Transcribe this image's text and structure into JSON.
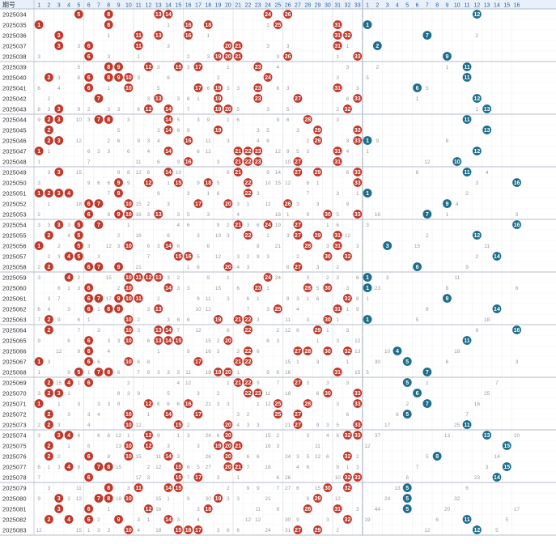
{
  "chart_data": {
    "type": "table",
    "header": {
      "period_label": "期号",
      "red_columns": [
        1,
        2,
        3,
        4,
        5,
        6,
        7,
        8,
        9,
        10,
        11,
        12,
        13,
        14,
        15,
        16,
        17,
        18,
        19,
        20,
        21,
        22,
        23,
        24,
        25,
        26,
        27,
        28,
        29,
        30,
        31,
        32,
        33
      ],
      "blue_columns": [
        1,
        2,
        3,
        4,
        5,
        6,
        7,
        8,
        9,
        10,
        11,
        12,
        13,
        14,
        15,
        16
      ]
    },
    "colors": {
      "red": "#c0392b",
      "blue": "#1f6e8c",
      "header_bg": "#e8f1fb",
      "header_text": "#2a5d96",
      "miss_text": "#999999"
    },
    "draws": [
      {
        "period": "2025034",
        "red": [
          5,
          8,
          13,
          14,
          24,
          26
        ],
        "blue": 12
      },
      {
        "period": "2025035",
        "red": [
          1,
          8,
          16,
          18,
          25,
          31
        ],
        "blue": 1
      },
      {
        "period": "2025036",
        "red": [
          3,
          11,
          13,
          16,
          31,
          32
        ],
        "blue": 7
      },
      {
        "period": "2025037",
        "red": [
          3,
          6,
          11,
          20,
          21,
          31
        ],
        "blue": 2
      },
      {
        "period": "2025038",
        "red": [
          6,
          19,
          20,
          21,
          26,
          33
        ],
        "blue": 9
      },
      {
        "period": "2025039",
        "red": [
          8,
          9,
          12,
          15,
          17,
          23
        ],
        "blue": 11
      },
      {
        "period": "2025040",
        "red": [
          2,
          6,
          8,
          9,
          10,
          24
        ],
        "blue": 11
      },
      {
        "period": "2025041",
        "red": [
          6,
          10,
          17,
          19,
          23,
          31
        ],
        "blue": 6
      },
      {
        "period": "2025042",
        "red": [
          7,
          13,
          19,
          23,
          27,
          33
        ],
        "blue": 12
      },
      {
        "period": "2025043",
        "red": [
          3,
          12,
          14,
          19,
          20,
          32
        ],
        "blue": 13
      },
      {
        "period": "2025044",
        "red": [
          2,
          3,
          7,
          8,
          14,
          28
        ],
        "blue": 11
      },
      {
        "period": "2025045",
        "red": [
          2,
          14,
          19,
          29,
          33
        ],
        "blue": 13
      },
      {
        "period": "2025046",
        "red": [
          2,
          3,
          16,
          29,
          33
        ],
        "blue": 1
      },
      {
        "period": "2025047",
        "red": [
          1,
          14,
          21,
          22,
          23,
          31
        ],
        "blue": 12
      },
      {
        "period": "2025048",
        "red": [
          16,
          21,
          22,
          23,
          27,
          31
        ],
        "blue": 10
      },
      {
        "period": "2025049",
        "red": [
          3,
          14,
          21,
          27,
          29,
          33
        ],
        "blue": 11
      },
      {
        "period": "2025050",
        "red": [
          9,
          12,
          15,
          18,
          22,
          33
        ],
        "blue": 16
      },
      {
        "period": "2025051",
        "red": [
          1,
          2,
          3,
          4,
          9,
          22
        ],
        "blue": 1
      },
      {
        "period": "2025052",
        "red": [
          6,
          7,
          10,
          17,
          20,
          26
        ],
        "blue": 9
      },
      {
        "period": "2025053",
        "red": [
          6,
          9,
          10,
          13,
          30,
          33
        ],
        "blue": 7
      },
      {
        "period": "2025054",
        "red": [
          3,
          5,
          7,
          21,
          24,
          27
        ],
        "blue": 16
      },
      {
        "period": "2025055",
        "red": [
          2,
          5,
          22,
          27,
          29,
          31
        ],
        "blue": 12
      },
      {
        "period": "2025056",
        "red": [
          1,
          5,
          10,
          14,
          28,
          31
        ],
        "blue": 3
      },
      {
        "period": "2025057",
        "red": [
          4,
          5,
          15,
          16,
          30,
          32
        ],
        "blue": 14
      },
      {
        "period": "2025058",
        "red": [
          2,
          6,
          7,
          9,
          20,
          27
        ],
        "blue": 6
      },
      {
        "period": "2025059",
        "red": [
          4,
          10,
          11,
          12,
          13,
          24
        ],
        "blue": 1
      },
      {
        "period": "2025060",
        "red": [
          6,
          10,
          14,
          23,
          28,
          30
        ],
        "blue": 1
      },
      {
        "period": "2025061",
        "red": [
          6,
          7,
          9,
          10,
          11,
          32
        ],
        "blue": 9
      },
      {
        "period": "2025062",
        "red": [
          6,
          8,
          9,
          13,
          25,
          31
        ],
        "blue": 14
      },
      {
        "period": "2025063",
        "red": [
          2,
          10,
          19,
          21,
          22,
          30
        ],
        "blue": 1
      },
      {
        "period": "2025064",
        "red": [
          2,
          10,
          13,
          14,
          22,
          29
        ],
        "blue": 16
      },
      {
        "period": "2025065",
        "red": [
          6,
          10,
          13,
          14,
          15,
          20
        ],
        "blue": 11
      },
      {
        "period": "2025066",
        "red": [
          6,
          22,
          27,
          28,
          30,
          32
        ],
        "blue": 4
      },
      {
        "period": "2025067",
        "red": [
          1,
          6,
          10,
          17,
          21,
          22
        ],
        "blue": 5
      },
      {
        "period": "2025068",
        "red": [
          5,
          7,
          8,
          19,
          20,
          31
        ],
        "blue": 7
      },
      {
        "period": "2025069",
        "red": [
          2,
          4,
          6,
          21,
          22,
          27
        ],
        "blue": 5
      },
      {
        "period": "2025070",
        "red": [
          2,
          3,
          22,
          23,
          30,
          33
        ],
        "blue": 6
      },
      {
        "period": "2025071",
        "red": [
          1,
          12,
          16,
          25,
          28,
          33
        ],
        "blue": 7
      },
      {
        "period": "2025072",
        "red": [
          2,
          10,
          14,
          17,
          25,
          27
        ],
        "blue": 5
      },
      {
        "period": "2025073",
        "red": [
          2,
          10,
          15,
          20,
          27,
          33
        ],
        "blue": 11
      },
      {
        "period": "2025074",
        "red": [
          3,
          4,
          12,
          20,
          32,
          33
        ],
        "blue": 13
      },
      {
        "period": "2025075",
        "red": [
          2,
          10,
          12,
          19,
          20,
          21
        ],
        "blue": 15
      },
      {
        "period": "2025076",
        "red": [
          2,
          6,
          10,
          14,
          20,
          32
        ],
        "blue": 8
      },
      {
        "period": "2025077",
        "red": [
          4,
          7,
          8,
          15,
          20,
          21
        ],
        "blue": 15
      },
      {
        "period": "2025078",
        "red": [
          6,
          15,
          17,
          32,
          33
        ],
        "blue": 14
      },
      {
        "period": "2025079",
        "red": [
          8,
          11,
          14,
          15,
          30,
          32
        ],
        "blue": 5
      },
      {
        "period": "2025080",
        "red": [
          3,
          7,
          8,
          10,
          19,
          29
        ],
        "blue": 5
      },
      {
        "period": "2025081",
        "red": [
          3,
          6,
          12,
          18,
          28,
          31
        ],
        "blue": 5
      },
      {
        "period": "2025082",
        "red": [
          2,
          4,
          6,
          9,
          14,
          32
        ],
        "blue": 11
      },
      {
        "period": "2025083",
        "red": [
          10,
          15,
          16,
          17,
          27,
          29
        ],
        "blue": 12
      }
    ]
  }
}
